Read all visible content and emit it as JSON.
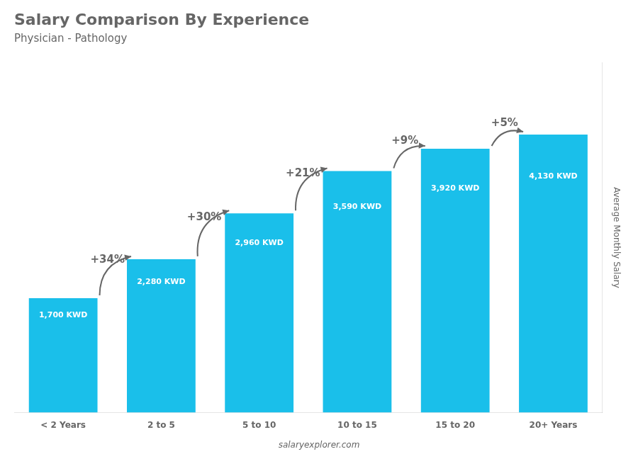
{
  "chart_data": {
    "type": "bar",
    "title": "Salary Comparison By Experience",
    "subtitle": "Physician - Pathology",
    "ylabel": "Average Monthly Salary",
    "categories": [
      "< 2 Years",
      "2 to 5",
      "5 to 10",
      "10 to 15",
      "15 to 20",
      "20+ Years"
    ],
    "values": [
      1700,
      2280,
      2960,
      3590,
      3920,
      4130
    ],
    "value_labels": [
      "1,700 KWD",
      "2,280 KWD",
      "2,960 KWD",
      "3,590 KWD",
      "3,920 KWD",
      "4,130 KWD"
    ],
    "data_labels": true,
    "annotations": [
      "+34%",
      "+30%",
      "+21%",
      "+9%",
      "+5%",
      "salaryexplorer.com"
    ],
    "color": "#1ABFEA",
    "ylim": [
      0,
      5200
    ],
    "tick_labels": "x",
    "grid": false
  }
}
